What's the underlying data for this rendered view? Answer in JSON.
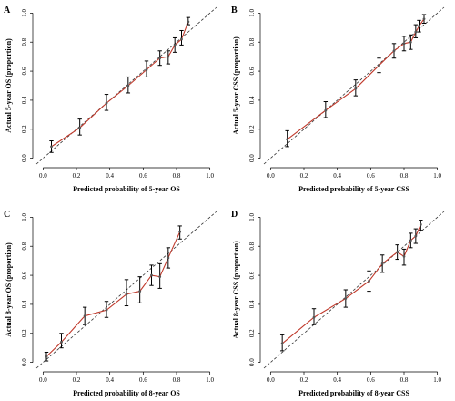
{
  "figure": {
    "colors": {
      "axis": "#000000",
      "line": "#c0392b",
      "errorbar": "#000000",
      "reference": "#333333",
      "point": "#555555"
    }
  },
  "chart_data": [
    {
      "type": "line",
      "panel": "A",
      "xlabel": "Predicted probability of 5-year OS",
      "ylabel": "Actual 5-year OS (proportion)",
      "xlim": [
        0,
        1
      ],
      "ylim": [
        0,
        1
      ],
      "x_ticks": [
        "0.0",
        "0.2",
        "0.4",
        "0.6",
        "0.8",
        "1.0"
      ],
      "y_ticks": [
        "0.0",
        "0.2",
        "0.4",
        "0.6",
        "0.8",
        "1.0"
      ],
      "reference_line": "diagonal",
      "points": [
        {
          "x": 0.05,
          "y": 0.08,
          "lo": 0.04,
          "hi": 0.12
        },
        {
          "x": 0.22,
          "y": 0.21,
          "lo": 0.16,
          "hi": 0.27
        },
        {
          "x": 0.38,
          "y": 0.38,
          "lo": 0.33,
          "hi": 0.44
        },
        {
          "x": 0.51,
          "y": 0.5,
          "lo": 0.45,
          "hi": 0.56
        },
        {
          "x": 0.62,
          "y": 0.61,
          "lo": 0.56,
          "hi": 0.67
        },
        {
          "x": 0.7,
          "y": 0.69,
          "lo": 0.64,
          "hi": 0.74
        },
        {
          "x": 0.75,
          "y": 0.7,
          "lo": 0.65,
          "hi": 0.74
        },
        {
          "x": 0.79,
          "y": 0.78,
          "lo": 0.73,
          "hi": 0.83
        },
        {
          "x": 0.83,
          "y": 0.82,
          "lo": 0.78,
          "hi": 0.88
        },
        {
          "x": 0.87,
          "y": 0.94,
          "lo": 0.92,
          "hi": 0.97
        }
      ]
    },
    {
      "type": "line",
      "panel": "B",
      "xlabel": "Predicted probability of 5-year CSS",
      "ylabel": "Actual 5-year CSS (proportion)",
      "xlim": [
        0,
        1
      ],
      "ylim": [
        0,
        1
      ],
      "x_ticks": [
        "0.0",
        "0.2",
        "0.4",
        "0.6",
        "0.8",
        "1.0"
      ],
      "y_ticks": [
        "0.0",
        "0.2",
        "0.4",
        "0.6",
        "0.8",
        "1.0"
      ],
      "reference_line": "diagonal",
      "points": [
        {
          "x": 0.1,
          "y": 0.13,
          "lo": 0.08,
          "hi": 0.19
        },
        {
          "x": 0.33,
          "y": 0.33,
          "lo": 0.28,
          "hi": 0.39
        },
        {
          "x": 0.51,
          "y": 0.48,
          "lo": 0.43,
          "hi": 0.54
        },
        {
          "x": 0.65,
          "y": 0.64,
          "lo": 0.59,
          "hi": 0.69
        },
        {
          "x": 0.74,
          "y": 0.74,
          "lo": 0.69,
          "hi": 0.79
        },
        {
          "x": 0.8,
          "y": 0.79,
          "lo": 0.74,
          "hi": 0.84
        },
        {
          "x": 0.84,
          "y": 0.8,
          "lo": 0.75,
          "hi": 0.85
        },
        {
          "x": 0.87,
          "y": 0.87,
          "lo": 0.83,
          "hi": 0.92
        },
        {
          "x": 0.89,
          "y": 0.91,
          "lo": 0.87,
          "hi": 0.95
        },
        {
          "x": 0.92,
          "y": 0.96,
          "lo": 0.93,
          "hi": 0.99
        }
      ]
    },
    {
      "type": "line",
      "panel": "C",
      "xlabel": "Predicted probability of 8-year OS",
      "ylabel": "Actual 8-year OS (proportion)",
      "xlim": [
        0,
        1
      ],
      "ylim": [
        0,
        1
      ],
      "x_ticks": [
        "0.0",
        "0.2",
        "0.4",
        "0.6",
        "0.8",
        "1.0"
      ],
      "y_ticks": [
        "0.0",
        "0.2",
        "0.4",
        "0.6",
        "0.8",
        "1.0"
      ],
      "reference_line": "diagonal",
      "points": [
        {
          "x": 0.02,
          "y": 0.04,
          "lo": 0.01,
          "hi": 0.07
        },
        {
          "x": 0.11,
          "y": 0.14,
          "lo": 0.1,
          "hi": 0.2
        },
        {
          "x": 0.25,
          "y": 0.32,
          "lo": 0.26,
          "hi": 0.38
        },
        {
          "x": 0.38,
          "y": 0.36,
          "lo": 0.31,
          "hi": 0.42
        },
        {
          "x": 0.5,
          "y": 0.47,
          "lo": 0.39,
          "hi": 0.57
        },
        {
          "x": 0.58,
          "y": 0.49,
          "lo": 0.41,
          "hi": 0.59
        },
        {
          "x": 0.65,
          "y": 0.6,
          "lo": 0.53,
          "hi": 0.67
        },
        {
          "x": 0.7,
          "y": 0.59,
          "lo": 0.51,
          "hi": 0.68
        },
        {
          "x": 0.75,
          "y": 0.72,
          "lo": 0.65,
          "hi": 0.79
        },
        {
          "x": 0.82,
          "y": 0.9,
          "lo": 0.85,
          "hi": 0.94
        }
      ]
    },
    {
      "type": "line",
      "panel": "D",
      "xlabel": "Predicted probability of 8-year CSS",
      "ylabel": "Actual 8-year CSS (proportion)",
      "xlim": [
        0,
        1
      ],
      "ylim": [
        0,
        1
      ],
      "x_ticks": [
        "0.0",
        "0.2",
        "0.4",
        "0.6",
        "0.8",
        "1.0"
      ],
      "y_ticks": [
        "0.0",
        "0.2",
        "0.4",
        "0.6",
        "0.8",
        "1.0"
      ],
      "reference_line": "diagonal",
      "points": [
        {
          "x": 0.07,
          "y": 0.13,
          "lo": 0.08,
          "hi": 0.19
        },
        {
          "x": 0.26,
          "y": 0.31,
          "lo": 0.26,
          "hi": 0.37
        },
        {
          "x": 0.45,
          "y": 0.44,
          "lo": 0.38,
          "hi": 0.5
        },
        {
          "x": 0.59,
          "y": 0.56,
          "lo": 0.49,
          "hi": 0.63
        },
        {
          "x": 0.67,
          "y": 0.68,
          "lo": 0.62,
          "hi": 0.74
        },
        {
          "x": 0.76,
          "y": 0.76,
          "lo": 0.71,
          "hi": 0.81
        },
        {
          "x": 0.8,
          "y": 0.73,
          "lo": 0.67,
          "hi": 0.78
        },
        {
          "x": 0.84,
          "y": 0.84,
          "lo": 0.79,
          "hi": 0.89
        },
        {
          "x": 0.87,
          "y": 0.87,
          "lo": 0.82,
          "hi": 0.92
        },
        {
          "x": 0.9,
          "y": 0.95,
          "lo": 0.91,
          "hi": 0.98
        }
      ]
    }
  ]
}
